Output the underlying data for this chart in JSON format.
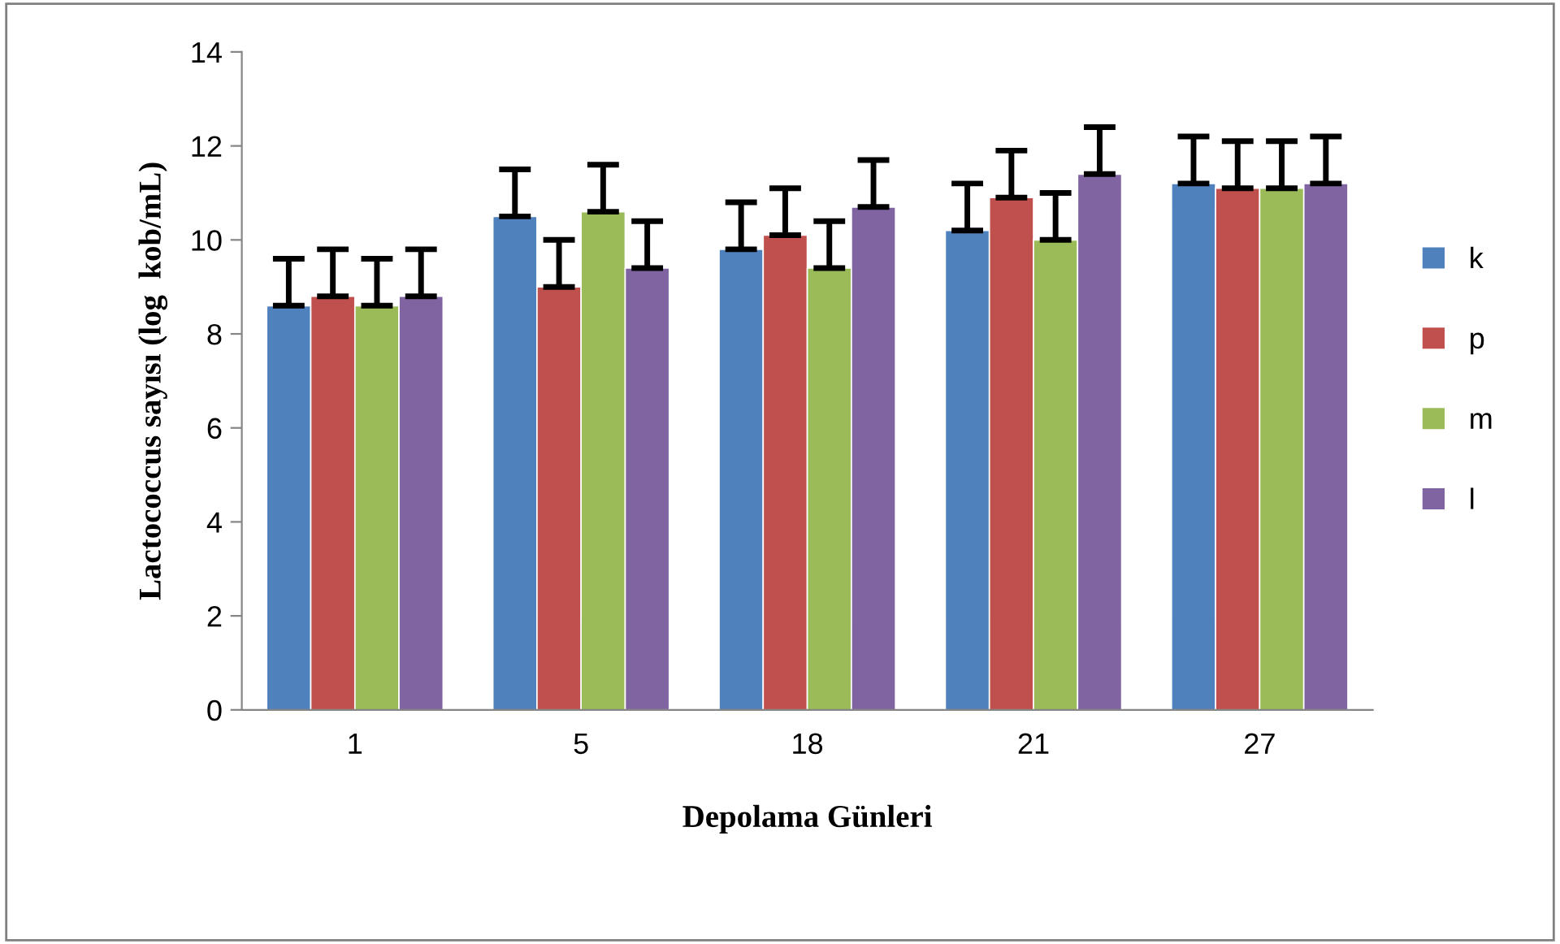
{
  "chart_data": {
    "type": "bar",
    "xlabel": "Depolama Günleri",
    "ylabel": "Lactococcus sayısı (log  kob/mL)",
    "categories": [
      "1",
      "5",
      "18",
      "21",
      "27"
    ],
    "series": [
      {
        "name": "k",
        "color": "#4f81bd",
        "values": [
          8.6,
          10.5,
          9.8,
          10.2,
          11.2
        ],
        "errors": [
          1.0,
          1.0,
          1.0,
          1.0,
          1.0
        ]
      },
      {
        "name": "p",
        "color": "#c0504d",
        "values": [
          8.8,
          9.0,
          10.1,
          10.9,
          11.1
        ],
        "errors": [
          1.0,
          1.0,
          1.0,
          1.0,
          1.0
        ]
      },
      {
        "name": "m",
        "color": "#9bbb59",
        "values": [
          8.6,
          10.6,
          9.4,
          10.0,
          11.1
        ],
        "errors": [
          1.0,
          1.0,
          1.0,
          1.0,
          1.0
        ]
      },
      {
        "name": "l",
        "color": "#8064a2",
        "values": [
          8.8,
          9.4,
          10.7,
          11.4,
          11.2
        ],
        "errors": [
          1.0,
          1.0,
          1.0,
          1.0,
          1.0
        ]
      }
    ],
    "ylim": [
      0,
      14
    ],
    "yticks": [
      0,
      2,
      4,
      6,
      8,
      10,
      12,
      14
    ],
    "grid": false,
    "legend": "right"
  }
}
